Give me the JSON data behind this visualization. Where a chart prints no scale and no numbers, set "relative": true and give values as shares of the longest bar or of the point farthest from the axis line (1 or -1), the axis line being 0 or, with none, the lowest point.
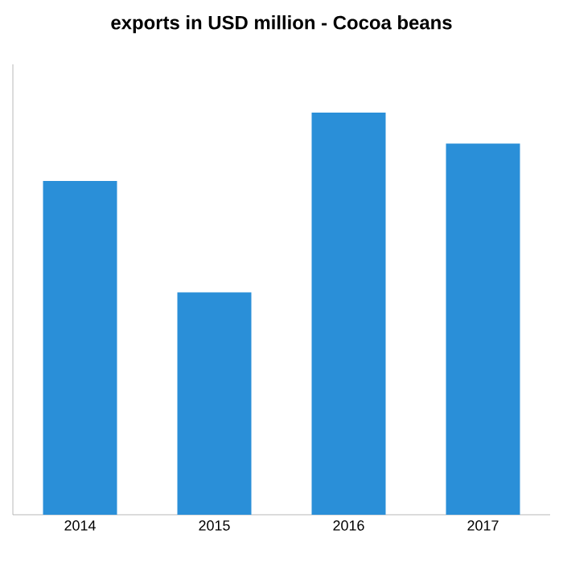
{
  "chart_data": {
    "type": "bar",
    "title": "exports in USD million - Cocoa beans",
    "categories": [
      "2014",
      "2015",
      "2016",
      "2017"
    ],
    "values": [
      0.83,
      0.553,
      1,
      0.923
    ],
    "color": "#2a8fd8",
    "relative": true
  }
}
